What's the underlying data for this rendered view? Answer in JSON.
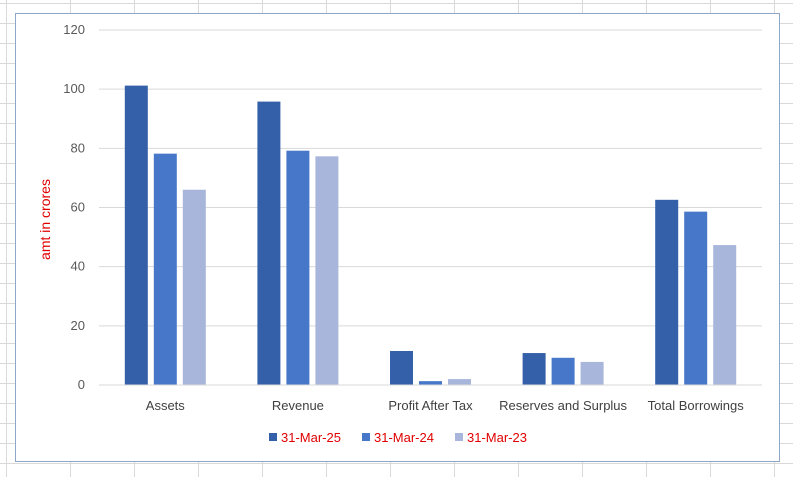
{
  "chart_data": {
    "type": "bar",
    "title": "",
    "xlabel": "",
    "ylabel": "amt in crores",
    "ylim": [
      0,
      120
    ],
    "yticks": [
      0,
      20,
      40,
      60,
      80,
      100,
      120
    ],
    "grid": true,
    "legend_position": "bottom",
    "categories": [
      "Assets",
      "Revenue",
      "Profit After Tax",
      "Reserves and Surplus",
      "Total Borrowings"
    ],
    "series": [
      {
        "name": "31-Mar-25",
        "color": "#3360a8",
        "values": [
          101.2,
          95.8,
          11.5,
          10.8,
          62.6
        ]
      },
      {
        "name": "31-Mar-24",
        "color": "#4677c8",
        "values": [
          78.2,
          79.2,
          1.3,
          9.2,
          58.6
        ]
      },
      {
        "name": "31-Mar-23",
        "color": "#a8b6db",
        "values": [
          66.0,
          77.3,
          2.0,
          7.8,
          47.3
        ]
      }
    ]
  }
}
